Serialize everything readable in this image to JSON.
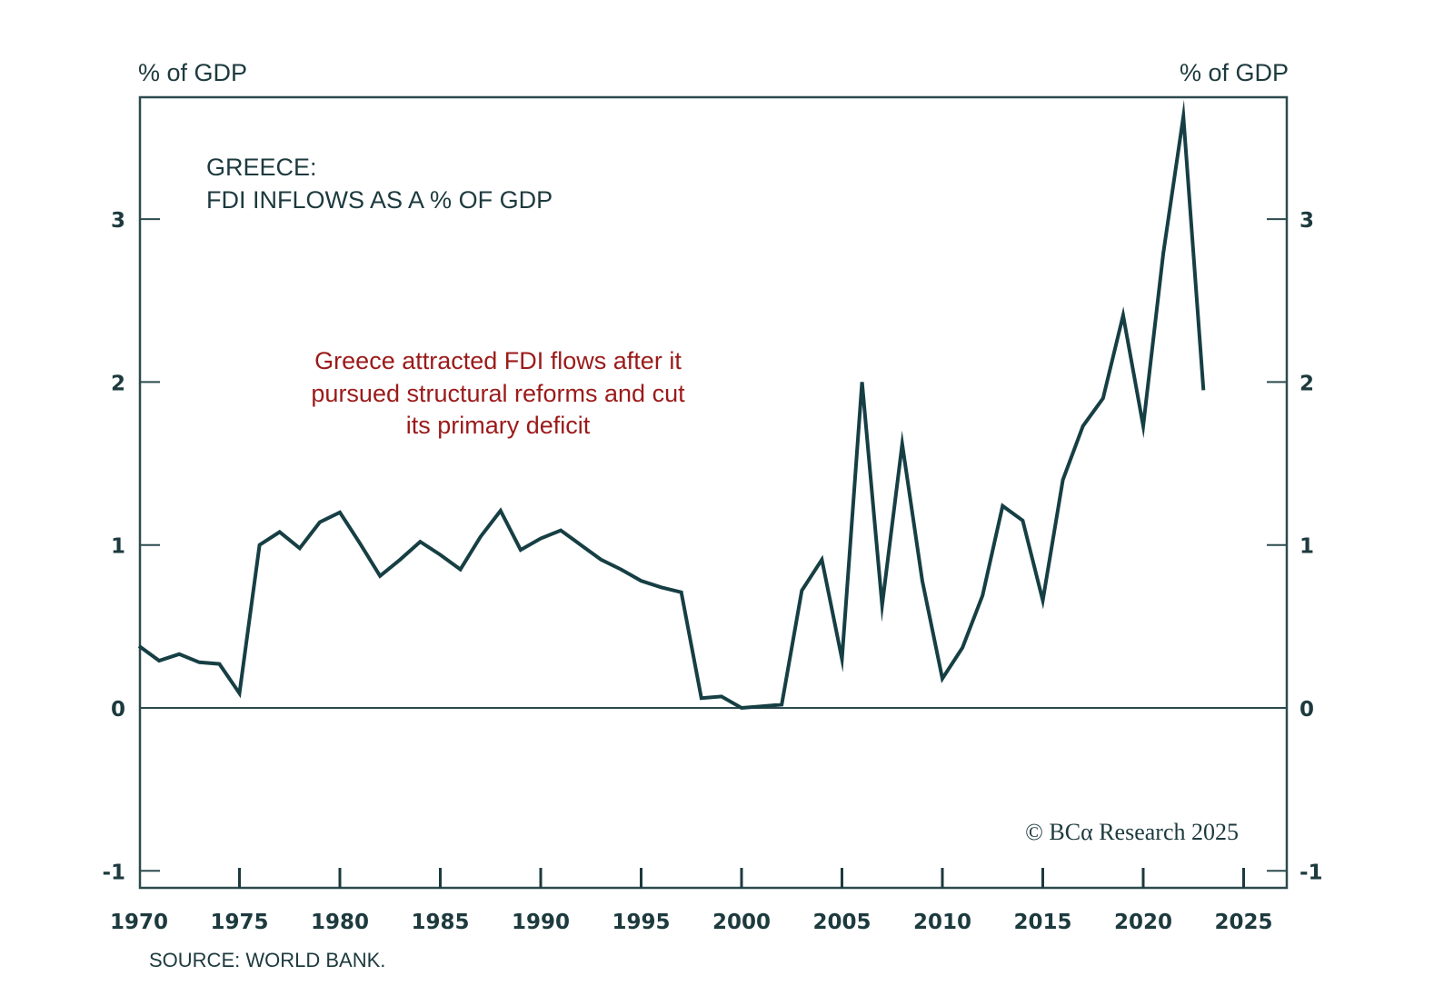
{
  "chart_data": {
    "type": "line",
    "title": "GREECE:",
    "subtitle": "FDI INFLOWS AS A % OF GDP",
    "ylabel_left": "% of GDP",
    "ylabel_right": "% of GDP",
    "xlabel": "",
    "xlim": [
      1970,
      2027
    ],
    "ylim": [
      -1.1,
      3.75
    ],
    "xticks": [
      1970,
      1975,
      1980,
      1985,
      1990,
      1995,
      2000,
      2005,
      2010,
      2015,
      2020,
      2025
    ],
    "yticks": [
      -1,
      0,
      1,
      2,
      3
    ],
    "grid": false,
    "zero_line": true,
    "annotation": [
      "Greece attracted FDI flows after it",
      "pursued structural reforms and cut",
      "its primary deficit"
    ],
    "source": "SOURCE: WORLD BANK.",
    "copyright": "© BCα Research 2025",
    "series": [
      {
        "name": "Greece FDI inflows (% of GDP)",
        "color": "#163f44",
        "x": [
          1970,
          1971,
          1972,
          1973,
          1974,
          1975,
          1976,
          1977,
          1978,
          1979,
          1980,
          1981,
          1982,
          1983,
          1984,
          1985,
          1986,
          1987,
          1988,
          1989,
          1990,
          1991,
          1992,
          1993,
          1994,
          1995,
          1996,
          1997,
          1998,
          1999,
          2000,
          2001,
          2002,
          2003,
          2004,
          2005,
          2006,
          2007,
          2008,
          2009,
          2010,
          2011,
          2012,
          2013,
          2014,
          2015,
          2016,
          2017,
          2018,
          2019,
          2020,
          2021,
          2022,
          2023
        ],
        "values": [
          0.38,
          0.29,
          0.33,
          0.28,
          0.27,
          0.09,
          1.0,
          1.08,
          0.98,
          1.14,
          1.2,
          1.01,
          0.81,
          0.91,
          1.02,
          0.94,
          0.85,
          1.05,
          1.21,
          0.97,
          1.04,
          1.09,
          1.0,
          0.91,
          0.85,
          0.78,
          0.74,
          0.71,
          0.06,
          0.07,
          0.0,
          0.01,
          0.02,
          0.72,
          0.91,
          0.3,
          2.0,
          0.63,
          1.62,
          0.78,
          0.18,
          0.37,
          0.69,
          1.24,
          1.15,
          0.66,
          1.4,
          1.73,
          1.9,
          2.41,
          1.73,
          2.79,
          3.63,
          1.95
        ]
      }
    ]
  },
  "colors": {
    "line": "#163f44",
    "axis": "#2c4a4e",
    "annotation": "#9b1a1a"
  }
}
